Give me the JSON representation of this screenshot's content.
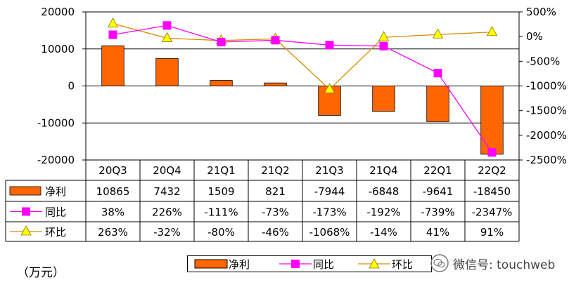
{
  "chart_data": {
    "type": "bar+line",
    "categories": [
      "20Q3",
      "20Q4",
      "21Q1",
      "21Q2",
      "21Q3",
      "21Q4",
      "22Q1",
      "22Q2"
    ],
    "series": [
      {
        "name": "净利",
        "kind": "bar",
        "axis": "left",
        "values": [
          10865,
          7432,
          1509,
          821,
          -7944,
          -6848,
          -9641,
          -18450
        ],
        "labels": [
          "10865",
          "7432",
          "1509",
          "821",
          "-7944",
          "-6848",
          "-9641",
          "-18450"
        ],
        "color": "#ff6600"
      },
      {
        "name": "同比",
        "kind": "line",
        "axis": "right",
        "marker": "square",
        "values": [
          38,
          226,
          -111,
          -73,
          -173,
          -192,
          -739,
          -2347
        ],
        "labels": [
          "38%",
          "226%",
          "-111%",
          "-73%",
          "-173%",
          "-192%",
          "-739%",
          "-2347%"
        ],
        "color": "#ff00ff"
      },
      {
        "name": "环比",
        "kind": "line",
        "axis": "right",
        "marker": "triangle",
        "values": [
          263,
          -32,
          -80,
          -46,
          -1068,
          -14,
          41,
          91
        ],
        "labels": [
          "263%",
          "-32%",
          "-80%",
          "-46%",
          "-1068%",
          "-14%",
          "41%",
          "91%"
        ],
        "color": "#d98c00",
        "marker_fill": "#ffff00"
      }
    ],
    "y_left": {
      "lim": [
        -20000,
        20000
      ],
      "ticks": [
        20000,
        10000,
        0,
        -10000,
        -20000
      ],
      "tick_labels": [
        "20000",
        "10000",
        "0",
        "-10000",
        "-20000"
      ]
    },
    "y_right": {
      "lim": [
        -2500,
        500
      ],
      "ticks": [
        500,
        0,
        -500,
        -1000,
        -1500,
        -2000,
        -2500
      ],
      "tick_labels": [
        "500%",
        "0%",
        "-500%",
        "-1000%",
        "-1500%",
        "-2000%",
        "-2500%"
      ]
    },
    "grid": "horizontal at 10000, 0, -10000 (left axis)",
    "legend": "bottom (below data table)"
  },
  "unit_label": "（万元）",
  "watermark": {
    "text": "微信号: touchweb",
    "icon": "wechat-icon"
  }
}
